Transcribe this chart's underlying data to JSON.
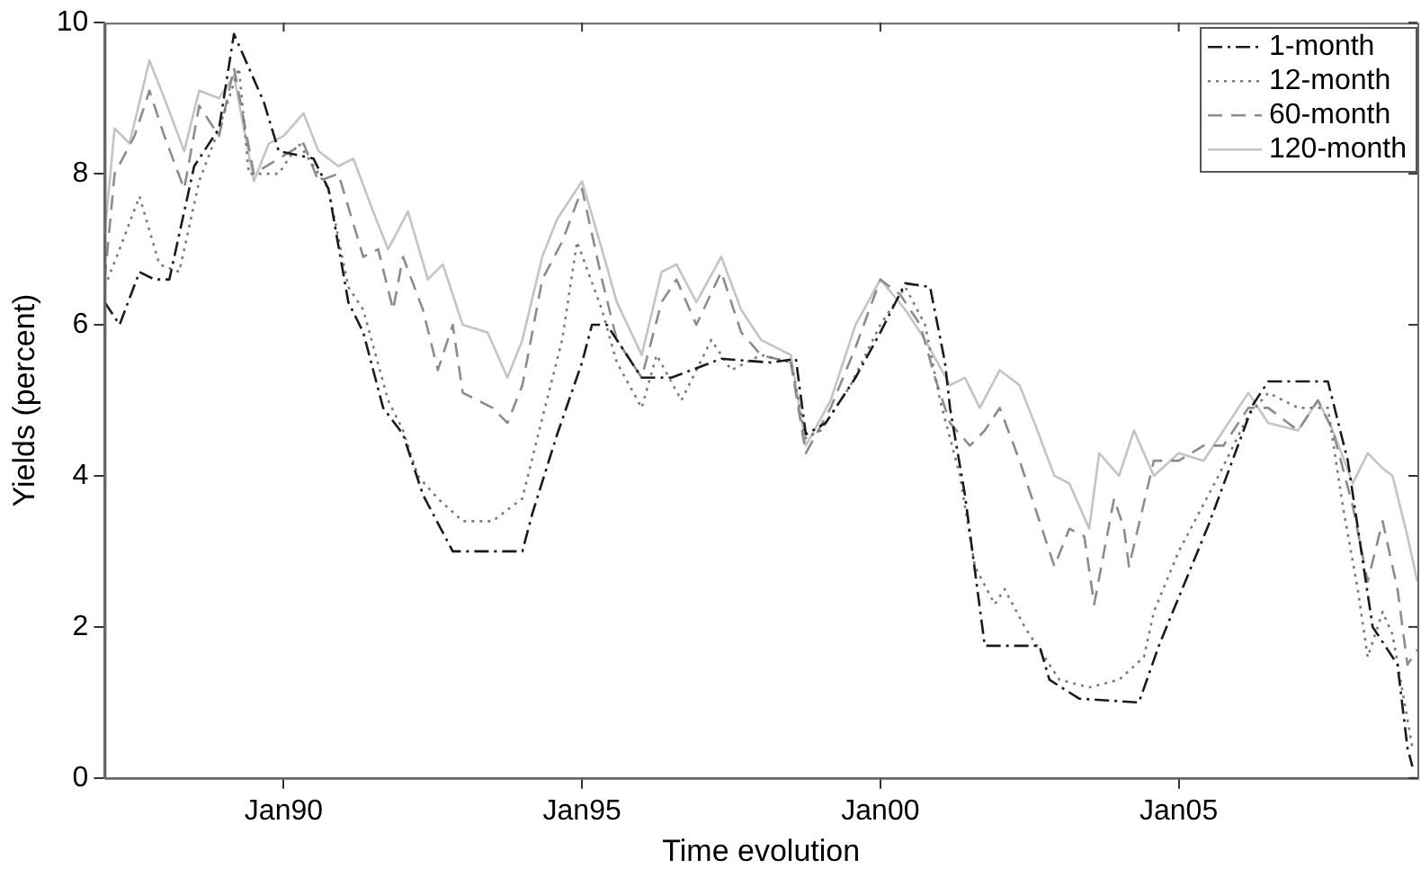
{
  "chart_data": {
    "type": "line",
    "xlabel": "Time evolution",
    "ylabel": "Yields (percent)",
    "xlim": [
      "1987-01",
      "2009-01"
    ],
    "ylim": [
      0,
      10
    ],
    "xticks": [
      {
        "value": "1990-01",
        "label": "Jan90"
      },
      {
        "value": "1995-01",
        "label": "Jan95"
      },
      {
        "value": "2000-01",
        "label": "Jan00"
      },
      {
        "value": "2005-01",
        "label": "Jan05"
      }
    ],
    "yticks": [
      0,
      2,
      4,
      6,
      8,
      10
    ],
    "grid": false,
    "legend": "top right",
    "marker": "none",
    "series": [
      {
        "name": "1-month",
        "color": "#1a1a1a",
        "line_style": "dashdot",
        "x": [
          "1987-01",
          "1987-04",
          "1987-08",
          "1987-11",
          "1988-02",
          "1988-07",
          "1988-12",
          "1989-03",
          "1989-09",
          "1989-12",
          "1990-07",
          "1990-10",
          "1991-02",
          "1991-05",
          "1991-09",
          "1992-01",
          "1992-05",
          "1992-11",
          "1993-06",
          "1994-01",
          "1994-03",
          "1994-08",
          "1995-01",
          "1995-03",
          "1995-06",
          "1996-01",
          "1996-07",
          "1997-05",
          "1998-03",
          "1998-08",
          "1998-10",
          "1999-02",
          "1999-08",
          "2000-01",
          "2000-06",
          "2000-11",
          "2001-02",
          "2001-03",
          "2001-06",
          "2001-10",
          "2002-09",
          "2002-11",
          "2003-05",
          "2004-05",
          "2004-09",
          "2005-07",
          "2006-04",
          "2006-07",
          "2007-07",
          "2007-11",
          "2008-04",
          "2008-09",
          "2008-11",
          "2008-12"
        ],
        "values": [
          6.3,
          6.0,
          6.7,
          6.6,
          6.6,
          8.1,
          8.6,
          9.85,
          8.95,
          8.3,
          8.2,
          7.8,
          6.3,
          5.9,
          4.9,
          4.55,
          3.75,
          3.0,
          3.0,
          3.0,
          3.5,
          4.55,
          5.5,
          6.0,
          6.0,
          5.3,
          5.3,
          5.55,
          5.5,
          5.55,
          4.55,
          4.7,
          5.3,
          5.9,
          6.55,
          6.5,
          5.5,
          4.9,
          3.75,
          1.75,
          1.75,
          1.3,
          1.05,
          1.0,
          1.75,
          3.35,
          4.95,
          5.25,
          5.25,
          4.2,
          2.0,
          1.5,
          0.4,
          0.15
        ]
      },
      {
        "name": "12-month",
        "color": "#7a7a7a",
        "line_style": "dotted",
        "x": [
          "1987-01",
          "1987-04",
          "1987-08",
          "1987-12",
          "1988-04",
          "1988-08",
          "1988-12",
          "1989-04",
          "1989-06",
          "1989-12",
          "1990-04",
          "1990-10",
          "1991-02",
          "1991-05",
          "1991-10",
          "1992-01",
          "1992-04",
          "1992-08",
          "1993-01",
          "1993-07",
          "1994-01",
          "1994-04",
          "1994-09",
          "1994-12",
          "1995-05",
          "1995-08",
          "1996-01",
          "1996-04",
          "1996-09",
          "1997-03",
          "1997-07",
          "1998-01",
          "1998-07",
          "1998-10",
          "1999-01",
          "1999-07",
          "2000-01",
          "2000-06",
          "2000-10",
          "2001-01",
          "2001-05",
          "2001-08",
          "2001-12",
          "2002-02",
          "2002-06",
          "2002-09",
          "2003-01",
          "2003-07",
          "2004-01",
          "2004-06",
          "2004-08",
          "2005-01",
          "2005-05",
          "2005-09",
          "2006-03",
          "2006-07",
          "2007-01",
          "2007-07",
          "2007-10",
          "2008-01",
          "2008-03",
          "2008-06",
          "2008-08",
          "2008-12"
        ],
        "values": [
          6.5,
          7.0,
          7.7,
          6.8,
          6.7,
          7.9,
          8.6,
          9.4,
          8.0,
          8.0,
          8.4,
          7.8,
          6.5,
          6.2,
          5.0,
          4.6,
          4.0,
          3.7,
          3.4,
          3.4,
          3.7,
          4.5,
          5.8,
          7.1,
          6.2,
          5.5,
          4.9,
          5.6,
          5.0,
          5.8,
          5.4,
          5.6,
          5.5,
          4.5,
          4.6,
          5.2,
          6.0,
          6.5,
          6.0,
          5.0,
          4.0,
          2.8,
          2.3,
          2.5,
          2.0,
          1.7,
          1.3,
          1.2,
          1.3,
          1.6,
          2.2,
          3.0,
          3.5,
          4.0,
          4.8,
          5.1,
          4.9,
          4.9,
          3.6,
          2.5,
          1.6,
          2.2,
          1.9,
          0.4
        ]
      },
      {
        "name": "60-month",
        "color": "#8c8c8c",
        "line_style": "dashed",
        "x": [
          "1987-01",
          "1987-03",
          "1987-07",
          "1987-10",
          "1988-01",
          "1988-05",
          "1988-08",
          "1988-12",
          "1989-03",
          "1989-07",
          "1989-12",
          "1990-05",
          "1990-08",
          "1990-12",
          "1991-05",
          "1991-08",
          "1991-11",
          "1992-01",
          "1992-05",
          "1992-08",
          "1992-11",
          "1993-01",
          "1993-07",
          "1993-10",
          "1994-01",
          "1994-05",
          "1994-09",
          "1995-01",
          "1995-05",
          "1995-08",
          "1996-01",
          "1996-05",
          "1996-08",
          "1996-12",
          "1997-05",
          "1997-09",
          "1998-01",
          "1998-07",
          "1998-10",
          "1999-03",
          "1999-08",
          "2000-01",
          "2000-05",
          "2000-09",
          "2000-12",
          "2001-03",
          "2001-07",
          "2001-10",
          "2002-01",
          "2002-05",
          "2002-08",
          "2002-12",
          "2003-03",
          "2003-06",
          "2003-08",
          "2003-12",
          "2004-02",
          "2004-03",
          "2004-08",
          "2005-01",
          "2005-06",
          "2005-10",
          "2006-03",
          "2006-07",
          "2007-01",
          "2007-05",
          "2007-08",
          "2007-12",
          "2008-03",
          "2008-06",
          "2008-09",
          "2008-11",
          "2009-01"
        ],
        "values": [
          6.6,
          8.0,
          8.5,
          9.1,
          8.5,
          7.8,
          8.9,
          8.5,
          9.4,
          8.0,
          8.2,
          8.4,
          7.9,
          8.0,
          6.9,
          7.0,
          6.2,
          6.9,
          6.2,
          5.4,
          6.0,
          5.1,
          4.9,
          4.7,
          5.2,
          6.6,
          7.1,
          7.8,
          6.6,
          5.8,
          5.3,
          6.3,
          6.6,
          6.0,
          6.7,
          5.9,
          5.6,
          5.5,
          4.3,
          4.9,
          5.7,
          6.6,
          6.4,
          6.0,
          5.3,
          4.7,
          4.4,
          4.6,
          4.9,
          4.2,
          3.6,
          2.8,
          3.3,
          3.2,
          2.3,
          3.7,
          3.3,
          2.8,
          4.2,
          4.2,
          4.4,
          4.4,
          4.9,
          4.9,
          4.6,
          5.0,
          4.6,
          3.6,
          2.6,
          3.4,
          2.5,
          1.5,
          1.7
        ]
      },
      {
        "name": "120-month",
        "color": "#c4c4c4",
        "line_style": "solid",
        "x": [
          "1987-01",
          "1987-03",
          "1987-06",
          "1987-10",
          "1988-01",
          "1988-05",
          "1988-08",
          "1988-12",
          "1989-03",
          "1989-07",
          "1989-10",
          "1990-01",
          "1990-05",
          "1990-08",
          "1990-12",
          "1991-03",
          "1991-07",
          "1991-10",
          "1992-02",
          "1992-06",
          "1992-09",
          "1993-01",
          "1993-06",
          "1993-10",
          "1994-01",
          "1994-05",
          "1994-08",
          "1995-01",
          "1995-05",
          "1995-08",
          "1996-01",
          "1996-05",
          "1996-08",
          "1996-12",
          "1997-05",
          "1997-09",
          "1998-01",
          "1998-07",
          "1998-10",
          "1999-03",
          "1999-08",
          "2000-01",
          "2000-06",
          "2000-10",
          "2001-03",
          "2001-06",
          "2001-09",
          "2002-01",
          "2002-05",
          "2002-08",
          "2002-12",
          "2003-03",
          "2003-07",
          "2003-09",
          "2004-01",
          "2004-04",
          "2004-08",
          "2005-01",
          "2005-06",
          "2005-10",
          "2006-03",
          "2006-07",
          "2007-01",
          "2007-05",
          "2007-08",
          "2007-12",
          "2008-03",
          "2008-06",
          "2008-08",
          "2008-11",
          "2009-01"
        ],
        "values": [
          7.2,
          8.6,
          8.4,
          9.5,
          9.0,
          8.3,
          9.1,
          9.0,
          9.3,
          7.9,
          8.4,
          8.5,
          8.8,
          8.3,
          8.1,
          8.2,
          7.5,
          7.0,
          7.5,
          6.6,
          6.8,
          6.0,
          5.9,
          5.3,
          5.8,
          6.9,
          7.4,
          7.9,
          7.0,
          6.3,
          5.6,
          6.7,
          6.8,
          6.3,
          6.9,
          6.2,
          5.8,
          5.6,
          4.4,
          5.0,
          6.0,
          6.6,
          6.2,
          5.8,
          5.2,
          5.3,
          4.9,
          5.4,
          5.2,
          4.7,
          4.0,
          3.9,
          3.3,
          4.3,
          4.0,
          4.6,
          4.0,
          4.3,
          4.2,
          4.6,
          5.1,
          4.7,
          4.6,
          5.0,
          4.6,
          3.9,
          4.3,
          4.1,
          4.0,
          3.2,
          2.6
        ]
      }
    ]
  }
}
